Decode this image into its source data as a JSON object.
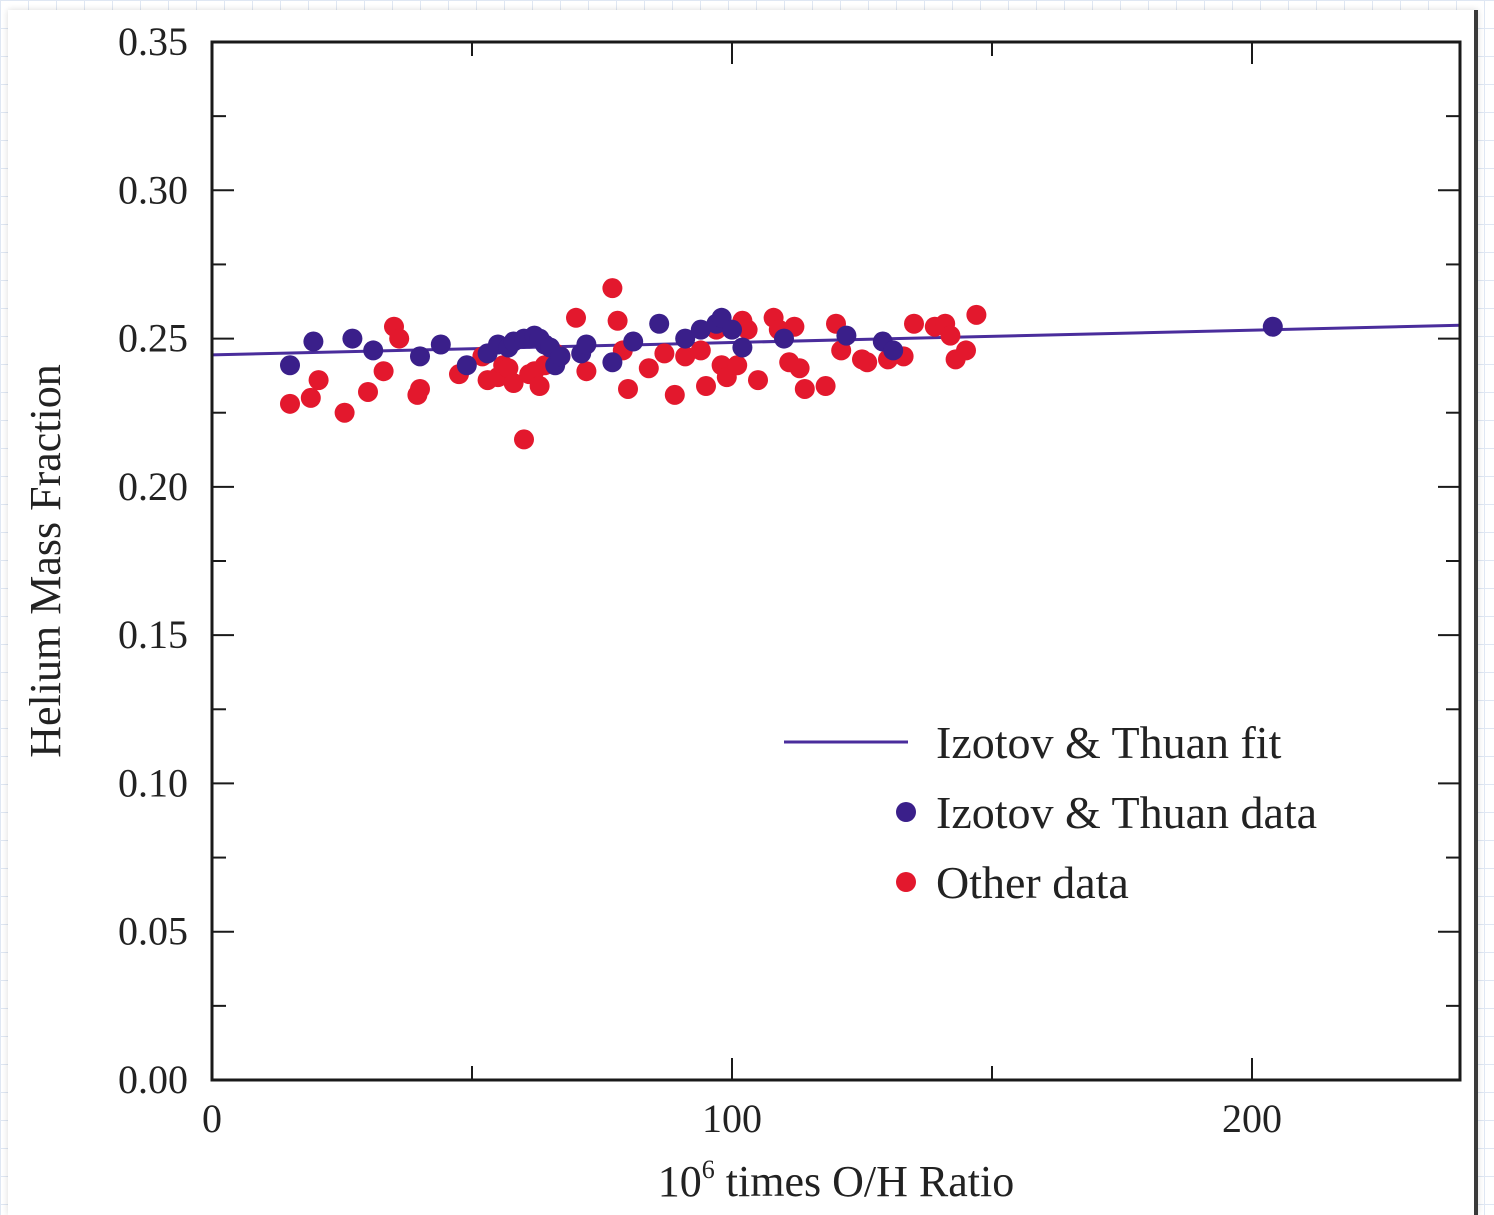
{
  "chart_data": {
    "type": "scatter",
    "title": "",
    "xlabel": {
      "base": "10",
      "exponent": "6",
      "rest": " times O/H Ratio"
    },
    "ylabel": "Helium Mass Fraction",
    "xlim": [
      0,
      240
    ],
    "ylim": [
      0.0,
      0.35
    ],
    "x_ticks": [
      0,
      100,
      200
    ],
    "y_ticks": [
      0.0,
      0.05,
      0.1,
      0.15,
      0.2,
      0.25,
      0.3,
      0.35
    ],
    "x_tick_labels": [
      "0",
      "100",
      "200"
    ],
    "y_tick_labels": [
      "0.00",
      "0.05",
      "0.10",
      "0.15",
      "0.20",
      "0.25",
      "0.30",
      "0.35"
    ],
    "grid": false,
    "legend_position": "lower-right",
    "colors": {
      "fit": "#4a2d9c",
      "izotov": "#3a1f8a",
      "other": "#e3182d"
    },
    "series": [
      {
        "name": "Izotov & Thuan fit",
        "kind": "line",
        "x": [
          0,
          240
        ],
        "y": [
          0.2445,
          0.2545
        ]
      },
      {
        "name": "Izotov & Thuan data",
        "kind": "scatter",
        "x": [
          15,
          19.5,
          27,
          31,
          40,
          44,
          49,
          53,
          55,
          57,
          58,
          60,
          61,
          62,
          63,
          64,
          65,
          66,
          67,
          71,
          72,
          77,
          81,
          86,
          91,
          94,
          97,
          98,
          100,
          102,
          110,
          122,
          129,
          131,
          204
        ],
        "y": [
          0.241,
          0.249,
          0.25,
          0.246,
          0.244,
          0.248,
          0.241,
          0.245,
          0.248,
          0.247,
          0.249,
          0.25,
          0.25,
          0.251,
          0.25,
          0.248,
          0.247,
          0.241,
          0.244,
          0.245,
          0.248,
          0.242,
          0.249,
          0.255,
          0.25,
          0.253,
          0.255,
          0.257,
          0.253,
          0.247,
          0.25,
          0.251,
          0.249,
          0.246,
          0.254
        ]
      },
      {
        "name": "Other data",
        "kind": "scatter",
        "x": [
          15,
          19,
          20.5,
          25.5,
          30,
          33,
          35,
          36,
          39.5,
          40,
          47.5,
          52,
          53,
          55,
          56,
          57,
          58,
          60,
          61,
          62,
          63,
          64,
          66,
          67,
          70,
          72,
          77,
          78,
          79,
          80,
          84,
          87,
          89,
          91,
          94,
          95,
          97,
          98,
          99,
          101,
          102,
          103,
          105,
          108,
          109,
          111,
          112,
          113,
          114,
          118,
          120,
          121,
          125,
          126,
          130,
          133,
          135,
          139,
          141,
          142,
          143,
          145,
          147
        ],
        "y": [
          0.228,
          0.23,
          0.236,
          0.225,
          0.232,
          0.239,
          0.254,
          0.25,
          0.231,
          0.233,
          0.238,
          0.244,
          0.236,
          0.237,
          0.241,
          0.24,
          0.235,
          0.216,
          0.238,
          0.239,
          0.234,
          0.241,
          0.245,
          0.244,
          0.257,
          0.239,
          0.267,
          0.256,
          0.246,
          0.233,
          0.24,
          0.245,
          0.231,
          0.244,
          0.246,
          0.234,
          0.253,
          0.241,
          0.237,
          0.241,
          0.256,
          0.253,
          0.236,
          0.257,
          0.253,
          0.242,
          0.254,
          0.24,
          0.233,
          0.234,
          0.255,
          0.246,
          0.243,
          0.242,
          0.243,
          0.244,
          0.255,
          0.254,
          0.255,
          0.251,
          0.243,
          0.246,
          0.258
        ]
      }
    ]
  }
}
